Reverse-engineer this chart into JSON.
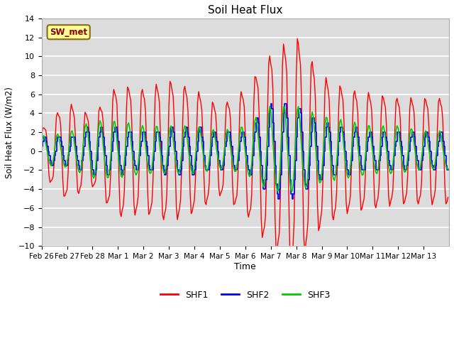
{
  "title": "Soil Heat Flux",
  "xlabel": "Time",
  "ylabel": "Soil Heat Flux (W/m2)",
  "ylim": [
    -10,
    14
  ],
  "yticks": [
    -10,
    -8,
    -6,
    -4,
    -2,
    0,
    2,
    4,
    6,
    8,
    10,
    12,
    14
  ],
  "annotation_text": "SW_met",
  "annotation_bg": "#ffff99",
  "annotation_border": "#8B6914",
  "annotation_text_color": "#8B0000",
  "bg_color": "#dcdcdc",
  "grid_color": "#ffffff",
  "shf1_color": "#ff0000",
  "shf2_color": "#0000ff",
  "shf3_color": "#00cc00",
  "legend_labels": [
    "SHF1",
    "SHF2",
    "SHF3"
  ],
  "day_labels": [
    "Feb 26",
    "Feb 27",
    "Feb 28",
    "Mar 1",
    "Mar 2",
    "Mar 3",
    "Mar 4",
    "Mar 5",
    "Mar 6",
    "Mar 7",
    "Mar 8",
    "Mar 9",
    "Mar 10",
    "Mar 11",
    "Mar 12",
    "Mar 13"
  ],
  "n_days": 16,
  "n_per_day": 24,
  "figsize": [
    6.4,
    4.8
  ],
  "dpi": 100
}
